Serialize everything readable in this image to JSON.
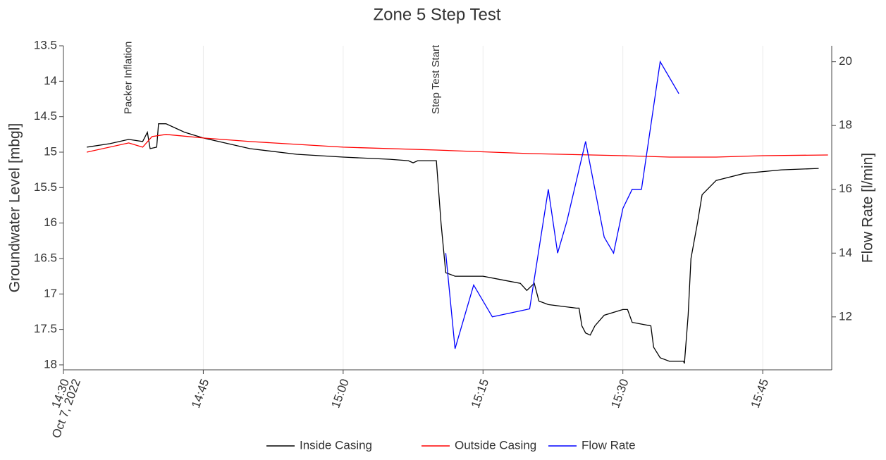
{
  "chart_data": {
    "type": "line",
    "title": "Zone 5 Step Test",
    "y_label": "Groundwater Level [mbgl]",
    "y2_label": "Flow Rate [l/min]",
    "x_date_label": "Oct 7, 2022",
    "xlim": [
      "14:30",
      "15:52:24"
    ],
    "xticks": [
      "14:30",
      "14:45",
      "15:00",
      "15:15",
      "15:30",
      "15:45"
    ],
    "ylim": [
      13.5,
      18.07
    ],
    "y_inverted": true,
    "yticks": [
      13.5,
      14,
      14.5,
      15,
      15.5,
      16,
      16.5,
      17,
      17.5,
      18
    ],
    "y2lim": [
      10.34,
      20.5
    ],
    "y2ticks": [
      12,
      14,
      16,
      18,
      20
    ],
    "grid": true,
    "legend": "bottom",
    "annotations": [
      {
        "text": "Packer Inflation",
        "x": "14:37"
      },
      {
        "text": "Step Test Start",
        "x": "15:10"
      }
    ],
    "series": [
      {
        "name": "Inside Casing",
        "color": "#000000",
        "axis": "y",
        "x": [
          "14:32:30",
          "14:35",
          "14:37",
          "14:38:30",
          "14:39",
          "14:39:18",
          "14:40",
          "14:40:12",
          "14:41",
          "14:43",
          "14:45",
          "14:50",
          "14:55",
          "15:00",
          "15:05",
          "15:07",
          "15:07:30",
          "15:08",
          "15:10",
          "15:10:30",
          "15:11",
          "15:12",
          "15:15",
          "15:17",
          "15:19",
          "15:19:42",
          "15:20:30",
          "15:21",
          "15:22",
          "15:25",
          "15:25:18",
          "15:25:36",
          "15:26",
          "15:26:30",
          "15:27",
          "15:28",
          "15:30",
          "15:30:30",
          "15:31",
          "15:33",
          "15:33:18",
          "15:34",
          "15:35",
          "15:36:30",
          "15:36:36",
          "15:37",
          "15:37:18",
          "15:38",
          "15:38:30",
          "15:40",
          "15:43",
          "15:47",
          "15:51"
        ],
        "values": [
          14.93,
          14.88,
          14.82,
          14.85,
          14.72,
          14.95,
          14.93,
          14.6,
          14.6,
          14.72,
          14.8,
          14.95,
          15.03,
          15.07,
          15.1,
          15.12,
          15.15,
          15.12,
          15.12,
          16.0,
          16.7,
          16.75,
          16.75,
          16.8,
          16.85,
          16.95,
          16.85,
          17.1,
          17.15,
          17.2,
          17.2,
          17.45,
          17.55,
          17.58,
          17.45,
          17.3,
          17.22,
          17.22,
          17.4,
          17.45,
          17.75,
          17.9,
          17.95,
          17.95,
          17.98,
          17.3,
          16.5,
          16.0,
          15.6,
          15.4,
          15.3,
          15.25,
          15.23
        ]
      },
      {
        "name": "Outside Casing",
        "color": "#ff0000",
        "axis": "y",
        "x": [
          "14:32:30",
          "14:37",
          "14:38:30",
          "14:39:30",
          "14:41",
          "14:45",
          "14:50",
          "15:00",
          "15:10",
          "15:20",
          "15:30",
          "15:35",
          "15:40",
          "15:45",
          "15:52"
        ],
        "values": [
          15.0,
          14.87,
          14.93,
          14.78,
          14.75,
          14.8,
          14.85,
          14.93,
          14.97,
          15.02,
          15.05,
          15.07,
          15.07,
          15.05,
          15.04
        ]
      },
      {
        "name": "Flow Rate",
        "color": "#0000ff",
        "axis": "y2",
        "x": [
          "15:11",
          "15:12",
          "15:14",
          "15:16",
          "15:20",
          "15:22",
          "15:23",
          "15:24",
          "15:26",
          "15:28",
          "15:29",
          "15:30",
          "15:31",
          "15:32",
          "15:34",
          "15:36"
        ],
        "values": [
          14.0,
          11.0,
          13.0,
          12.0,
          12.25,
          16.0,
          14.0,
          15.0,
          17.5,
          14.5,
          14.0,
          15.4,
          16.0,
          16.0,
          20.0,
          19.0
        ]
      }
    ]
  }
}
